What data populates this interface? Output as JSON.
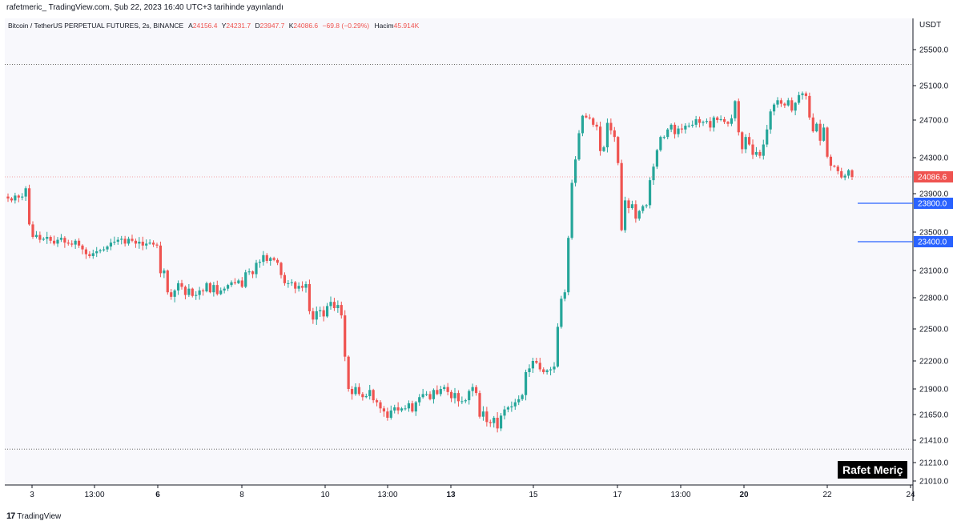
{
  "caption": "rafetmeric_ TradingView.com, Şub 22, 2023 16:40 UTC+3 tarihinde yayınlandı",
  "legend": {
    "symbol": "Bitcoin / TetherUS PERPETUAL FUTURES, 2s, BINANCE",
    "a_label": "A",
    "a_value": "24156.4",
    "y_label": "Y",
    "y_value": "24231.7",
    "d_label": "D",
    "d_value": "23947.7",
    "k_label": "K",
    "k_value": "24086.6",
    "change": "−69.8 (−0.29%)",
    "vol_label": "Hacim",
    "vol_value": "45.914K"
  },
  "footer": {
    "brand": "TradingView",
    "logo": "17"
  },
  "watermark": "Rafet Meriç",
  "colors": {
    "up": "#26a69a",
    "down": "#ef5350",
    "level": "#2962ff",
    "bg": "#f8f8fc"
  },
  "chart_data": {
    "type": "candlestick",
    "currency": "USDT",
    "y_ticks": [
      "25500.0",
      "25100.0",
      "24700.0",
      "24300.0",
      "23900.0",
      "23500.0",
      "23100.0",
      "22800.0",
      "22500.0",
      "22200.0",
      "21900.0",
      "21650.0",
      "21410.0",
      "21210.0",
      "21010.0"
    ],
    "x_ticks": [
      "3",
      "13:00",
      "6",
      "8",
      "10",
      "13:00",
      "13",
      "15",
      "17",
      "13:00",
      "20",
      "22",
      "24"
    ],
    "x_ticks_bold": [
      "6",
      "13",
      "20"
    ],
    "last_price": "24086.6",
    "levels": [
      "23800.0",
      "23400.0"
    ],
    "dotted_levels": [
      25335,
      21330
    ],
    "series_close": [
      23850,
      23830,
      23880,
      23860,
      23870,
      23960,
      23580,
      23450,
      23470,
      23420,
      23430,
      23450,
      23410,
      23380,
      23420,
      23440,
      23390,
      23380,
      23370,
      23410,
      23360,
      23320,
      23270,
      23250,
      23280,
      23300,
      23310,
      23320,
      23350,
      23390,
      23400,
      23420,
      23430,
      23380,
      23430,
      23410,
      23380,
      23400,
      23360,
      23380,
      23390,
      23370,
      23360,
      23070,
      23100,
      22860,
      22810,
      22880,
      22960,
      22920,
      22830,
      22900,
      22820,
      22830,
      22880,
      22870,
      22960,
      22860,
      22940,
      22840,
      22880,
      22900,
      22940,
      22970,
      22960,
      22990,
      22920,
      23080,
      23090,
      23060,
      23180,
      23190,
      23260,
      23200,
      23230,
      23210,
      23180,
      23050,
      22960,
      22960,
      22970,
      22900,
      22930,
      22910,
      22950,
      22670,
      22590,
      22670,
      22680,
      22620,
      22720,
      22760,
      22700,
      22730,
      22630,
      22240,
      21900,
      21850,
      21920,
      21850,
      21820,
      21830,
      21890,
      21790,
      21770,
      21710,
      21680,
      21620,
      21690,
      21720,
      21690,
      21710,
      21710,
      21760,
      21680,
      21770,
      21820,
      21850,
      21850,
      21800,
      21890,
      21850,
      21900,
      21920,
      21870,
      21810,
      21860,
      21780,
      21780,
      21790,
      21880,
      21920,
      21860,
      21630,
      21680,
      21580,
      21570,
      21620,
      21520,
      21640,
      21700,
      21720,
      21730,
      21770,
      21800,
      21840,
      22080,
      22120,
      22200,
      22180,
      22110,
      22080,
      22100,
      22110,
      22140,
      22520,
      22790,
      22860,
      23440,
      24020,
      24280,
      24560,
      24750,
      24730,
      24720,
      24650,
      24630,
      24370,
      24410,
      24670,
      24590,
      24520,
      24240,
      23520,
      23830,
      23750,
      23790,
      23640,
      23720,
      23770,
      23780,
      24050,
      24200,
      24380,
      24520,
      24520,
      24600,
      24650,
      24550,
      24610,
      24600,
      24640,
      24640,
      24650,
      24710,
      24670,
      24680,
      24690,
      24620,
      24730,
      24700,
      24710,
      24680,
      24660,
      24720,
      24920,
      24570,
      24390,
      24520,
      24440,
      24330,
      24360,
      24320,
      24440,
      24600,
      24800,
      24880,
      24930,
      24890,
      24870,
      24930,
      24810,
      24900,
      24990,
      25010,
      24980,
      24730,
      24580,
      24660,
      24480,
      24620,
      24310,
      24210,
      24200,
      24150,
      24080,
      24100,
      24160,
      24086
    ]
  }
}
